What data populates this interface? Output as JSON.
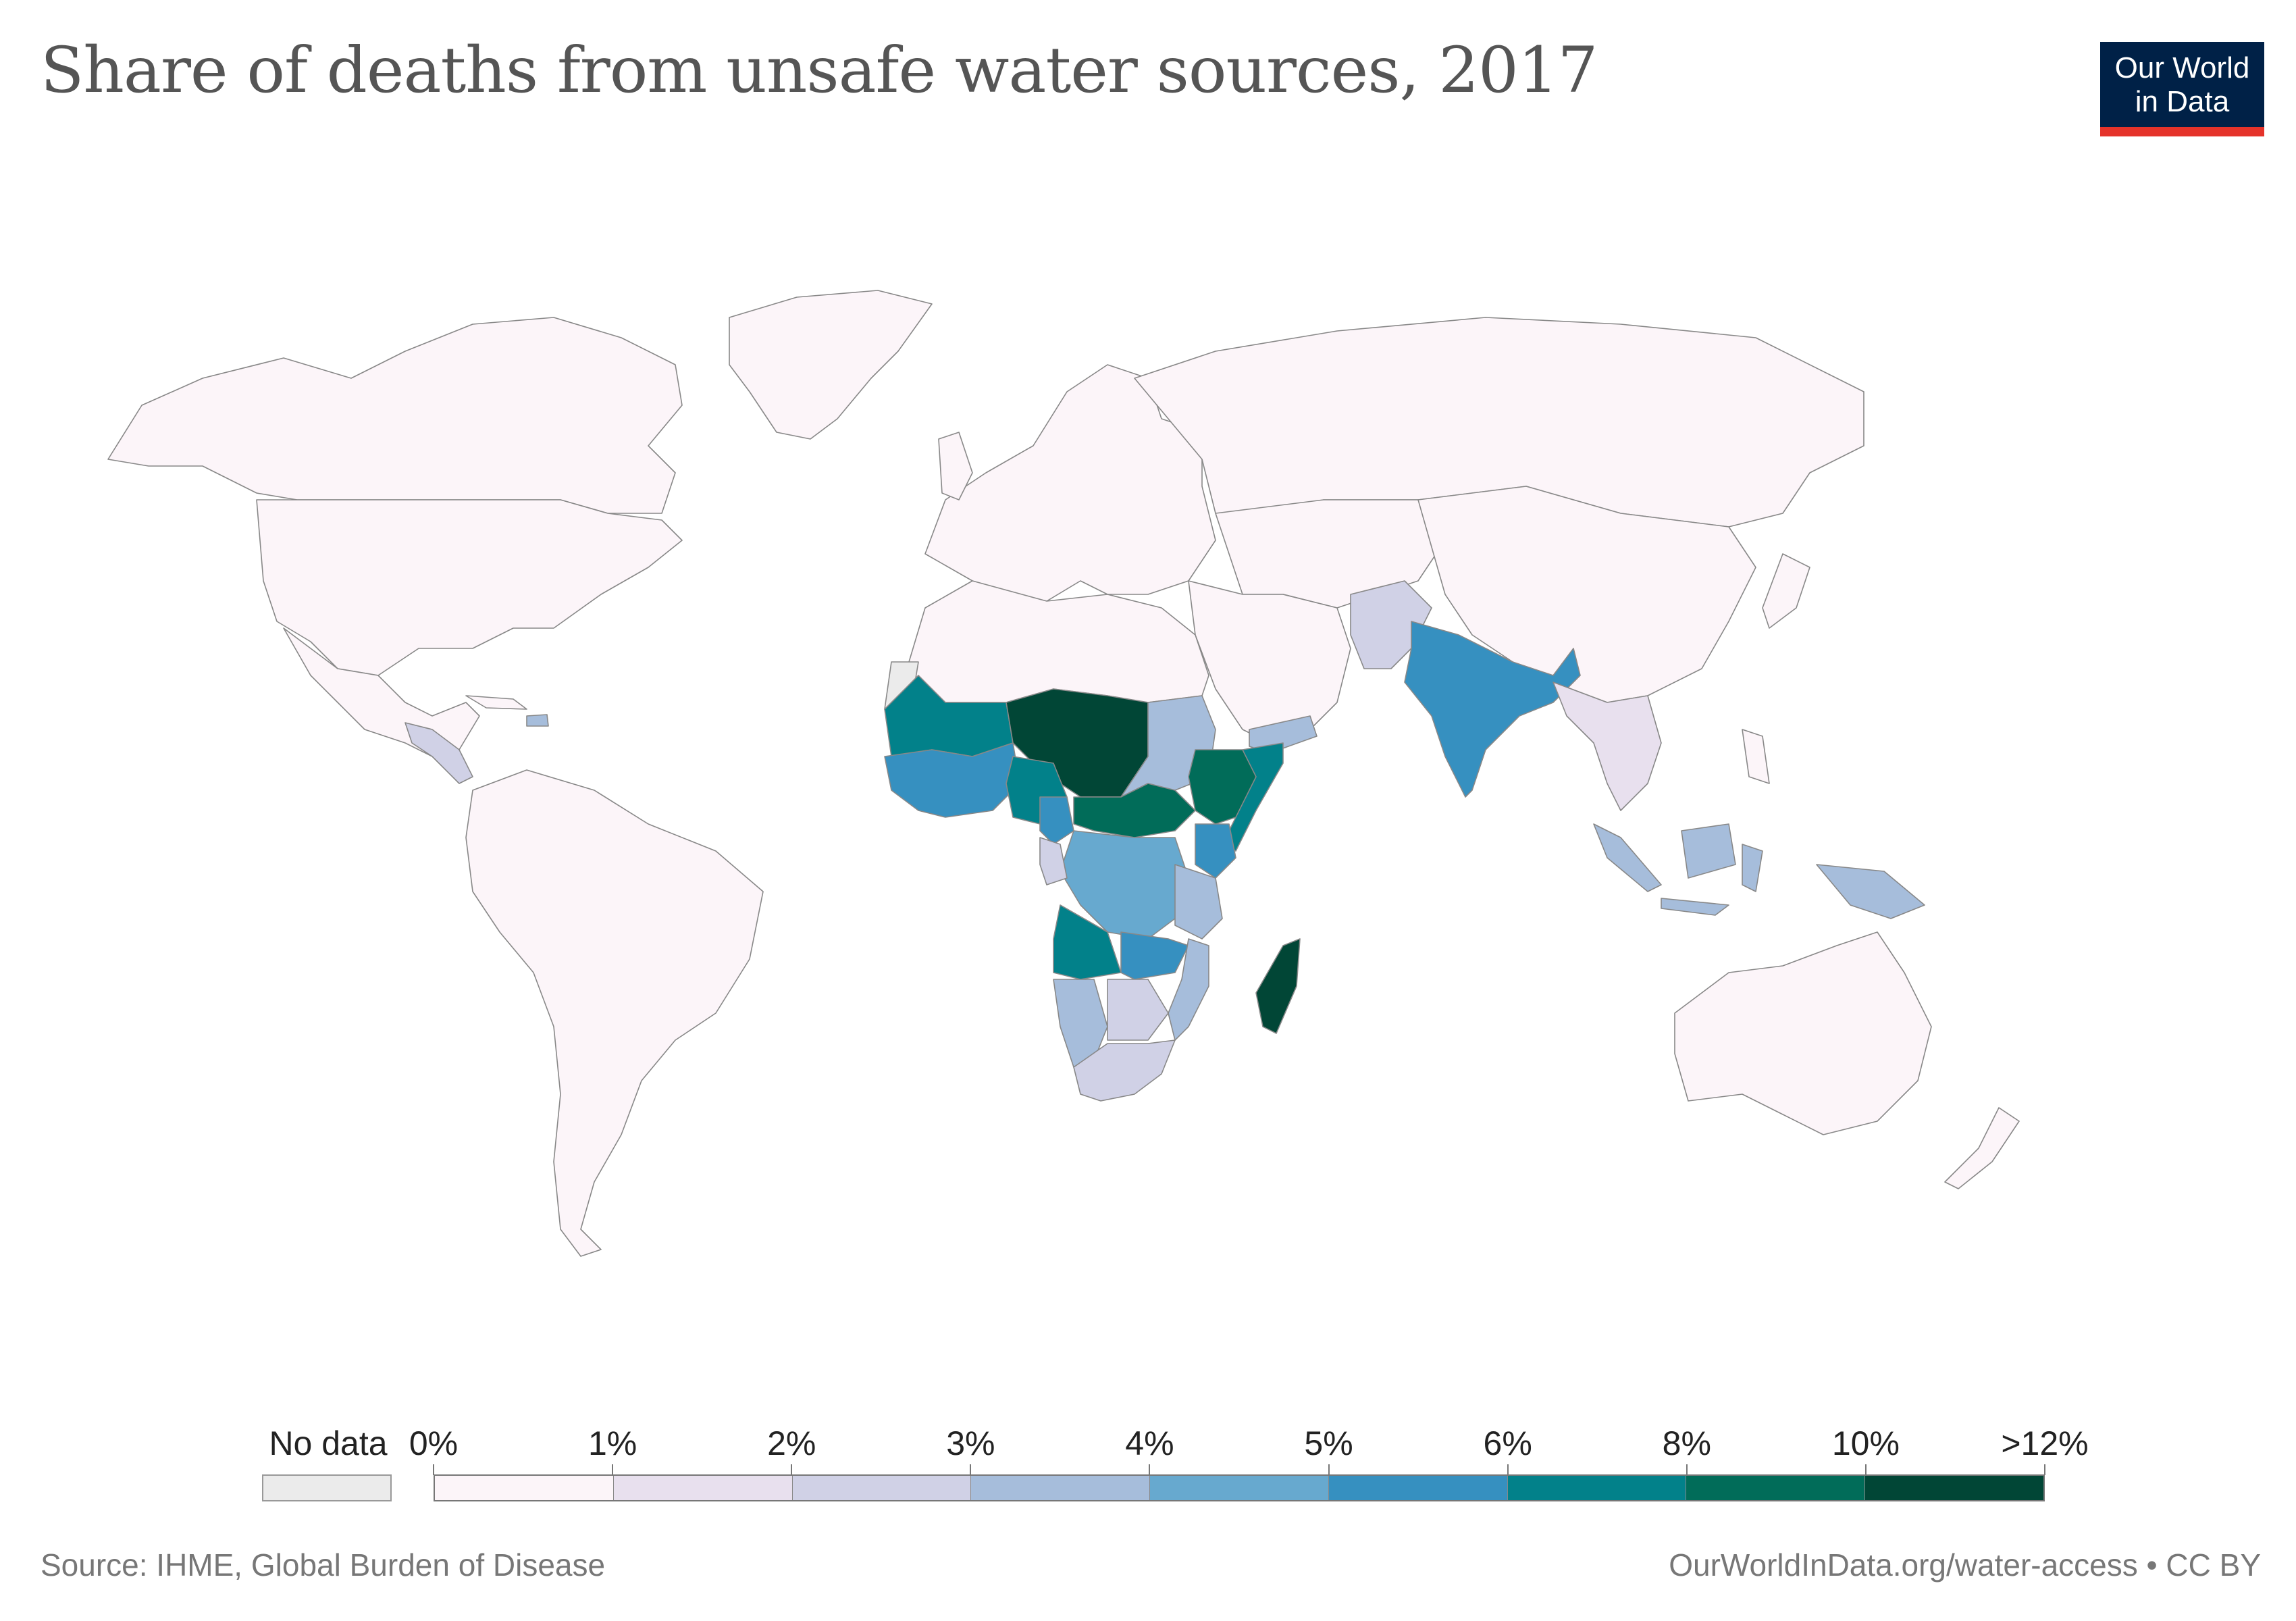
{
  "title": "Share of deaths from unsafe water sources, 2017",
  "logo": {
    "line1": "Our World",
    "line2": "in Data"
  },
  "legend": {
    "no_data_label": "No data",
    "no_data_color": "#ebebeb",
    "ticks": [
      "0%",
      "1%",
      "2%",
      "3%",
      "4%",
      "5%",
      "6%",
      "8%",
      "10%",
      ">12%"
    ],
    "colors": [
      "#fcf5f9",
      "#e8e0ee",
      "#d0d1e6",
      "#a6bddb",
      "#67a9cf",
      "#3690c0",
      "#02818a",
      "#016c59",
      "#014636"
    ]
  },
  "source": "Source: IHME, Global Burden of Disease",
  "url": "OurWorldInData.org/water-access • CC BY"
}
